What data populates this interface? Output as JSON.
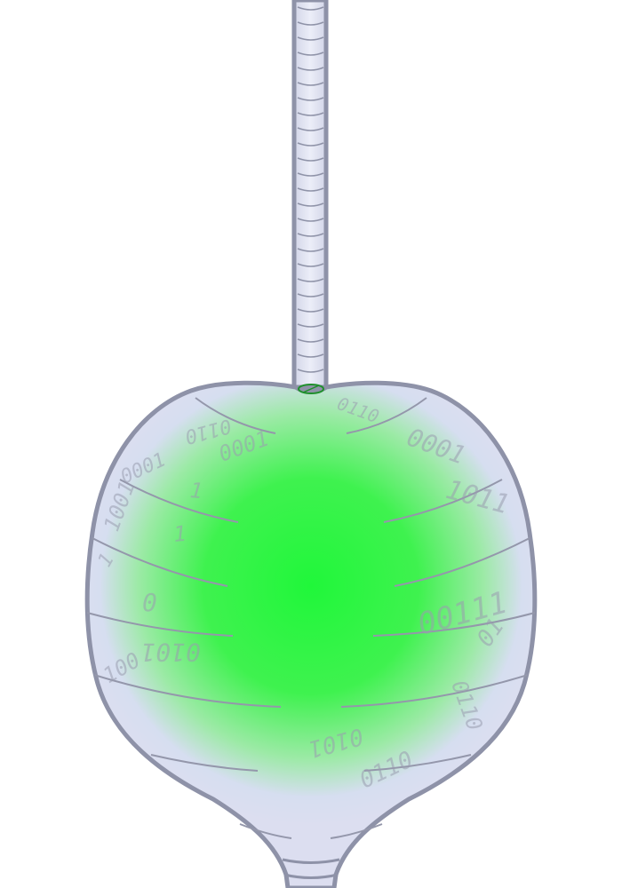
{
  "colors": {
    "outline": "#8e92a8",
    "glass": "#dcdef0",
    "glass_light": "#e6e8f5",
    "glow_core": "#20f73a",
    "glow_mid": "#4ff25f",
    "ridge": "#8f93a8",
    "rib_line": "#9497ab",
    "seam_mark": "#1f8f2c",
    "background": "#ffffff"
  },
  "binary_digits": [
    {
      "text": "0110"
    },
    {
      "text": "0110"
    },
    {
      "text": "0001"
    },
    {
      "text": "0001"
    },
    {
      "text": "1001"
    },
    {
      "text": "1"
    },
    {
      "text": "1"
    },
    {
      "text": "1"
    },
    {
      "text": "0"
    },
    {
      "text": "0101"
    },
    {
      "text": "100"
    },
    {
      "text": "0001"
    },
    {
      "text": "1011"
    },
    {
      "text": "00111"
    },
    {
      "text": "01"
    },
    {
      "text": "0110"
    },
    {
      "text": "0101"
    },
    {
      "text": "0110"
    }
  ]
}
